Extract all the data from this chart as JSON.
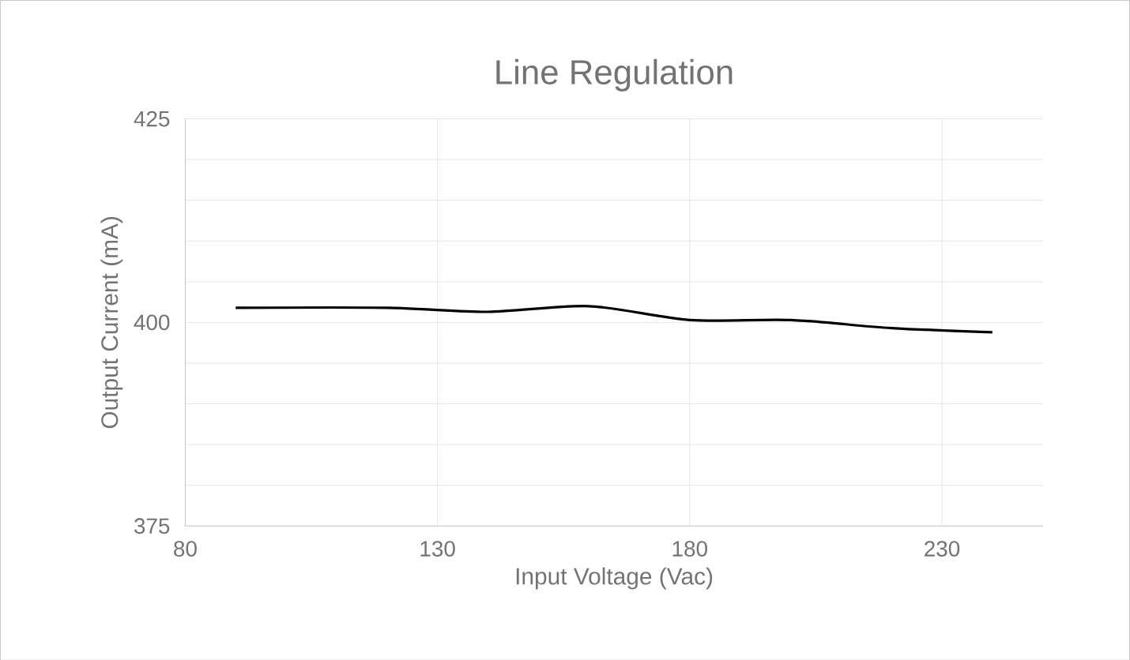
{
  "chart_data": {
    "type": "line",
    "title": "Line Regulation",
    "xlabel": "Input Voltage (Vac)",
    "ylabel": "Output Current (mA)",
    "x": [
      90,
      120,
      140,
      160,
      180,
      200,
      220,
      240
    ],
    "series": [
      {
        "color": "#000000",
        "values": [
          401.8,
          401.8,
          401.3,
          402.0,
          400.3,
          400.3,
          399.3,
          398.8
        ]
      }
    ],
    "xlim": [
      80,
      250
    ],
    "ylim": [
      375,
      425
    ],
    "xticks": [
      80,
      130,
      180,
      230
    ],
    "yticks": [
      375,
      {
        "value": 380,
        "label": null
      },
      {
        "value": 385,
        "label": null
      },
      {
        "value": 390,
        "label": null
      },
      {
        "value": 395,
        "label": null
      },
      400,
      {
        "value": 405,
        "label": null
      },
      {
        "value": 410,
        "label": null
      },
      {
        "value": 415,
        "label": null
      },
      {
        "value": 420,
        "label": null
      },
      425
    ],
    "grid": true,
    "marker": "none",
    "line_style": "solid"
  }
}
